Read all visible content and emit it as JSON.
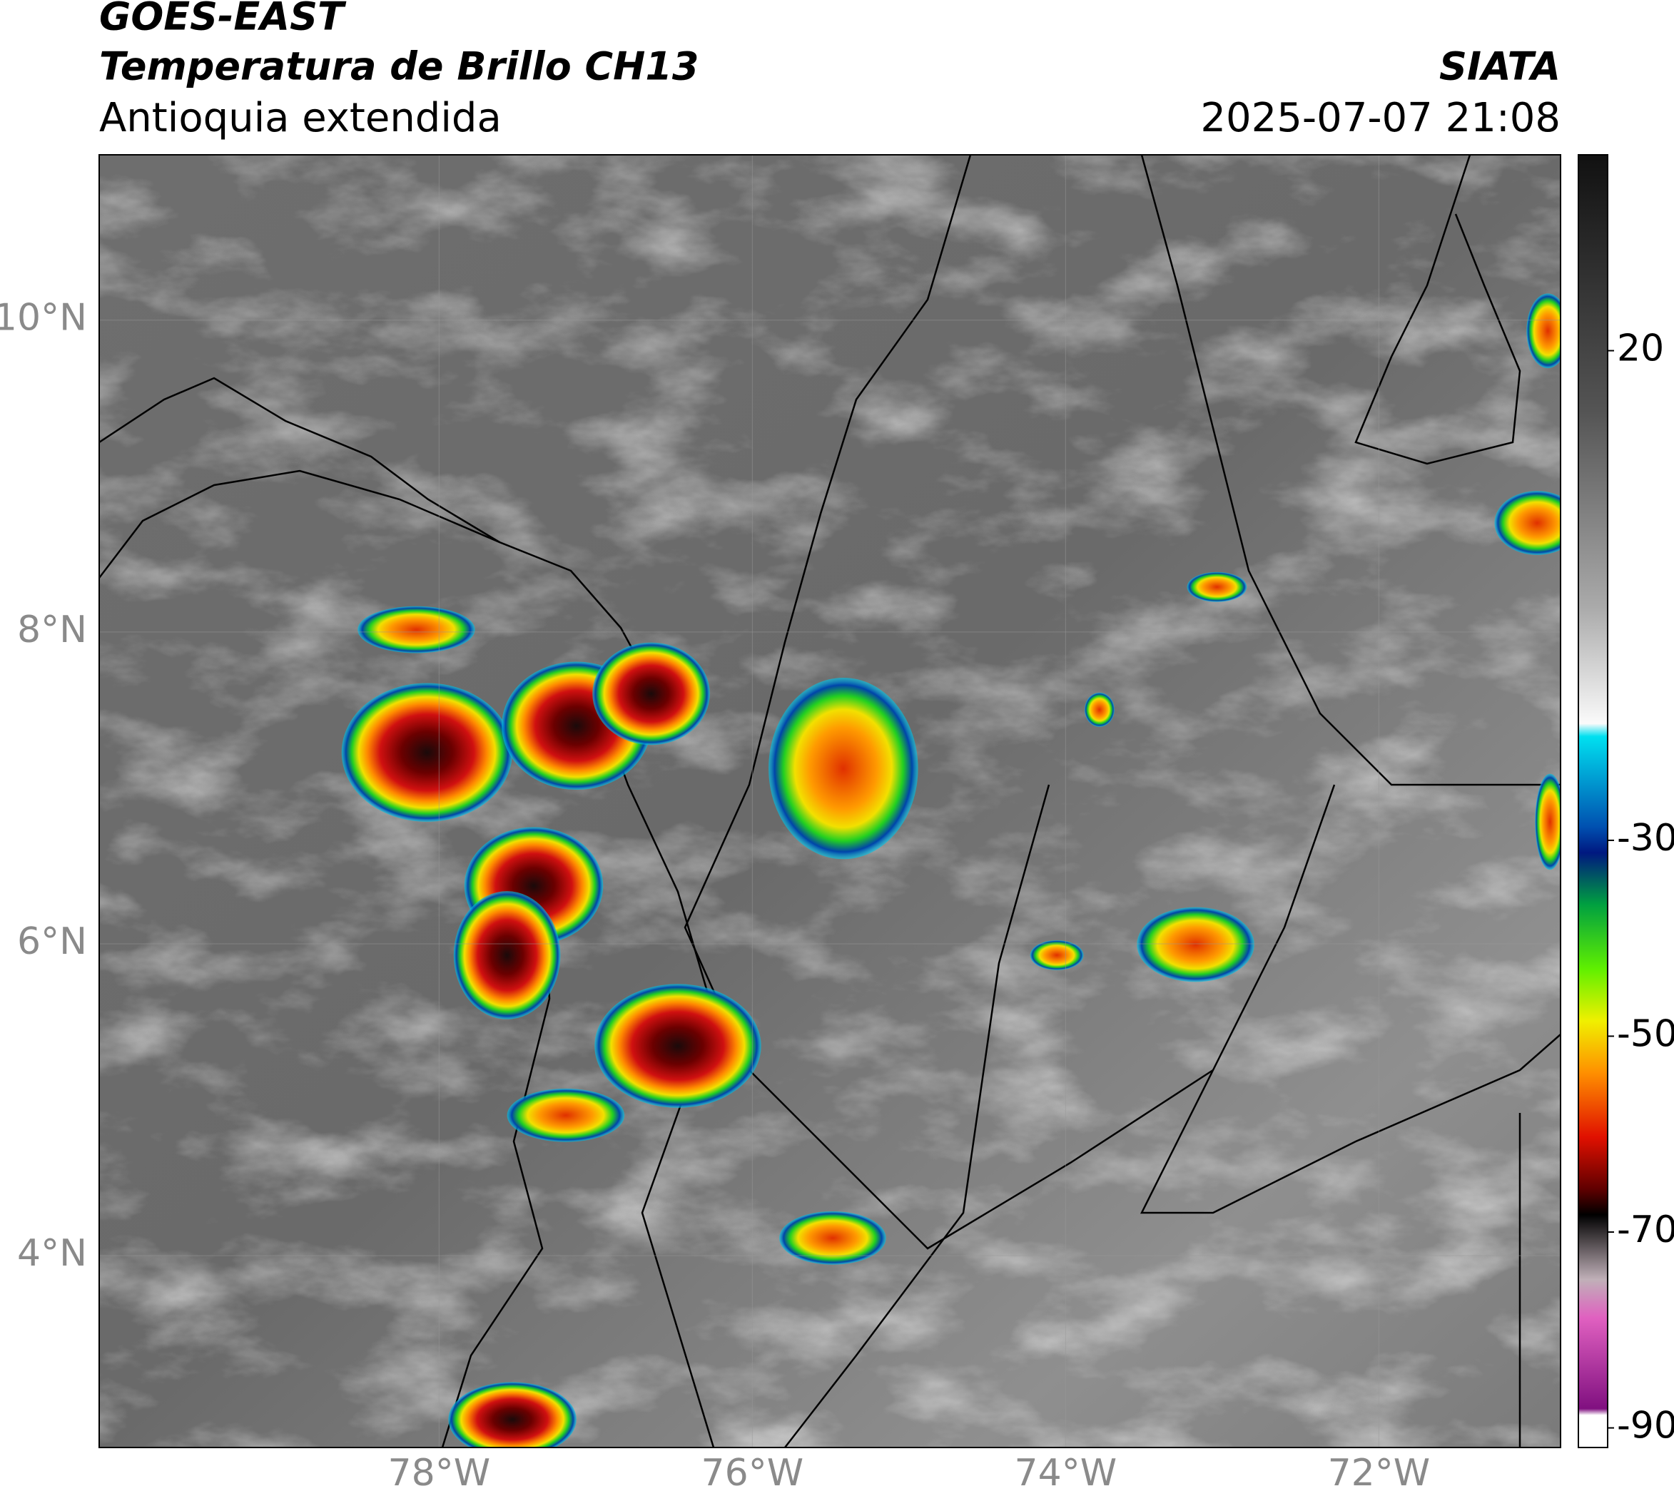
{
  "header": {
    "satellite": "GOES-EAST",
    "product": "Temperatura de Brillo CH13",
    "region": "Antioquia extendida",
    "source": "SIATA",
    "datetime": "2025-07-07 21:08"
  },
  "map": {
    "xlim": [
      -80.17,
      -70.84
    ],
    "ylim": [
      2.77,
      11.06
    ],
    "xticks": [
      {
        "value": -78,
        "label": "78°W"
      },
      {
        "value": -76,
        "label": "76°W"
      },
      {
        "value": -74,
        "label": "74°W"
      },
      {
        "value": -72,
        "label": "72°W"
      }
    ],
    "yticks": [
      {
        "value": 4,
        "label": "4°N"
      },
      {
        "value": 6,
        "label": "6°N"
      },
      {
        "value": 8,
        "label": "8°N"
      },
      {
        "value": 10,
        "label": "10°N"
      }
    ]
  },
  "colorbar": {
    "lim": [
      -92,
      40
    ],
    "ticks": [
      20,
      -30,
      -50,
      -70,
      -90
    ]
  }
}
